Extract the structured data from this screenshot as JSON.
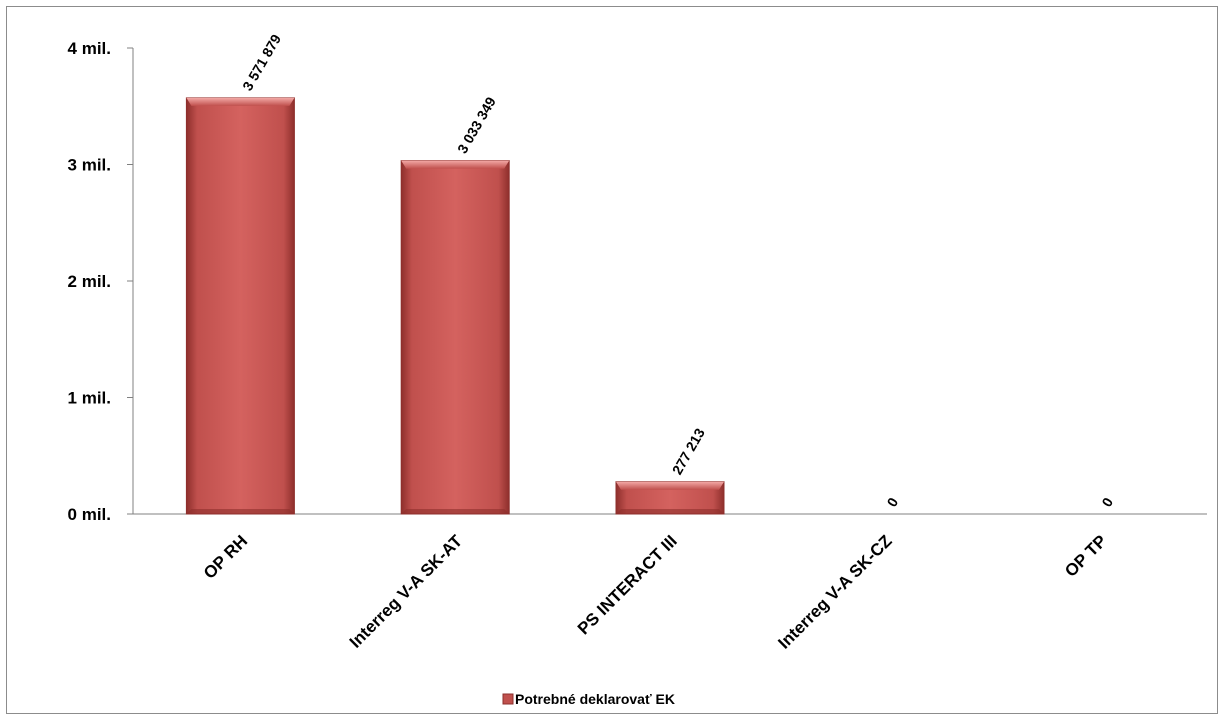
{
  "chart_data": {
    "type": "bar",
    "categories": [
      "OP RH",
      "Interreg V-A SK-AT",
      "PS INTERACT III",
      "Interreg V-A SK-CZ",
      "OP TP"
    ],
    "series": [
      {
        "name": "Potrebné deklarovať EK",
        "values": [
          3571879,
          3033349,
          277213,
          0,
          0
        ],
        "data_labels": [
          "3 571 879",
          "3 033 349",
          "277 213",
          "0",
          "0"
        ],
        "color": "#c0504d"
      }
    ],
    "yticks": [
      {
        "value": 0,
        "label": "0 mil."
      },
      {
        "value": 1000000,
        "label": "1 mil."
      },
      {
        "value": 2000000,
        "label": "2 mil."
      },
      {
        "value": 3000000,
        "label": "3 mil."
      },
      {
        "value": 4000000,
        "label": "4 mil."
      }
    ],
    "ylim": [
      0,
      4000000
    ],
    "grid": false,
    "legend": "bottom"
  }
}
